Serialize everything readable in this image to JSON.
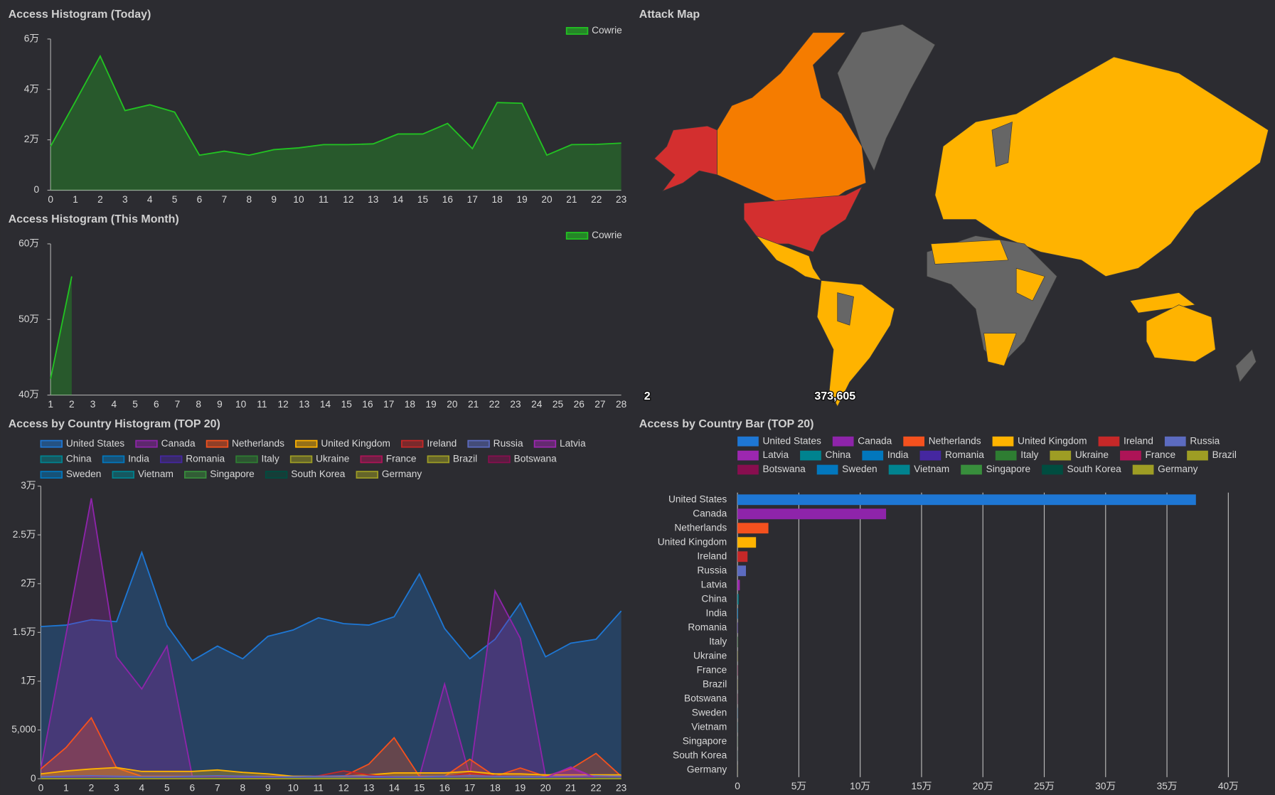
{
  "chart_data": [
    {
      "type": "line",
      "title": "Access Histogram (Today)",
      "legend": "top-right",
      "x": [
        0,
        1,
        2,
        3,
        4,
        5,
        6,
        7,
        8,
        9,
        10,
        11,
        12,
        13,
        14,
        15,
        16,
        17,
        18,
        19,
        20,
        21,
        22,
        23
      ],
      "xlim": [
        0,
        23
      ],
      "ylim": [
        0,
        60000
      ],
      "yticks": [
        0,
        {
          "value": 20000,
          "label": "2万"
        },
        {
          "value": 40000,
          "label": "4万"
        },
        {
          "value": 60000,
          "label": "6万"
        }
      ],
      "series": [
        {
          "name": "Cowrie",
          "color": "#22c322",
          "values": [
            17400,
            35200,
            53200,
            31600,
            33900,
            31000,
            13900,
            15500,
            13900,
            16100,
            16800,
            18100,
            18100,
            18400,
            22300,
            22300,
            26500,
            16500,
            34800,
            34500,
            13900,
            18100,
            18200,
            18700
          ]
        }
      ]
    },
    {
      "type": "line",
      "title": "Access Histogram (This Month)",
      "legend": "top-right",
      "x": [
        1,
        2,
        3,
        4,
        5,
        6,
        7,
        8,
        9,
        10,
        11,
        12,
        13,
        14,
        15,
        16,
        17,
        18,
        19,
        20,
        21,
        22,
        23,
        24,
        25,
        26,
        27,
        28
      ],
      "xlim": [
        1,
        28
      ],
      "ylim": [
        400000,
        600000
      ],
      "yticks": [
        {
          "value": 400000,
          "label": "40万"
        },
        {
          "value": 500000,
          "label": "50万"
        },
        {
          "value": 600000,
          "label": "60万"
        }
      ],
      "series": [
        {
          "name": "Cowrie",
          "color": "#22c322",
          "values": [
            421500,
            557000,
            null,
            null,
            null,
            null,
            null,
            null,
            null,
            null,
            null,
            null,
            null,
            null,
            null,
            null,
            null,
            null,
            null,
            null,
            null,
            null,
            null,
            null,
            null,
            null,
            null,
            null
          ]
        }
      ]
    },
    {
      "type": "line",
      "title": "Access by Country Histogram (TOP 20)",
      "legend": "top-left",
      "x": [
        0,
        1,
        2,
        3,
        4,
        5,
        6,
        7,
        8,
        9,
        10,
        11,
        12,
        13,
        14,
        15,
        16,
        17,
        18,
        19,
        20,
        21,
        22,
        23
      ],
      "xlim": [
        0,
        23
      ],
      "ylim": [
        0,
        30000
      ],
      "yticks": [
        0,
        {
          "value": 5000,
          "label": "5,000"
        },
        {
          "value": 10000,
          "label": "1万"
        },
        {
          "value": 15000,
          "label": "1.5万"
        },
        {
          "value": 20000,
          "label": "2万"
        },
        {
          "value": 25000,
          "label": "2.5万"
        },
        {
          "value": 30000,
          "label": "3万"
        }
      ],
      "series": [
        {
          "name": "United States",
          "color": "#1e77d4",
          "values": [
            15600,
            15750,
            16300,
            16100,
            23200,
            15700,
            12100,
            13600,
            12300,
            14600,
            15250,
            16500,
            15900,
            15750,
            16600,
            21000,
            15400,
            12300,
            14300,
            18000,
            12500,
            13900,
            14300,
            17200
          ]
        },
        {
          "name": "Canada",
          "color": "#8e24aa",
          "values": [
            1000,
            14800,
            28750,
            12500,
            9200,
            13600,
            250,
            200,
            200,
            200,
            200,
            200,
            200,
            200,
            200,
            200,
            9700,
            250,
            19250,
            14400,
            250,
            1100,
            0,
            0
          ]
        },
        {
          "name": "Netherlands",
          "color": "#f4511e",
          "values": [
            1000,
            3200,
            6250,
            1100,
            250,
            250,
            250,
            250,
            250,
            250,
            250,
            250,
            250,
            1500,
            4200,
            250,
            250,
            2000,
            250,
            1100,
            250,
            1000,
            2600,
            250
          ]
        },
        {
          "name": "United Kingdom",
          "color": "#ffb300",
          "values": [
            500,
            800,
            1000,
            1150,
            750,
            750,
            750,
            900,
            650,
            500,
            250,
            250,
            250,
            400,
            600,
            600,
            600,
            750,
            500,
            500,
            400,
            400,
            400,
            400
          ]
        },
        {
          "name": "Ireland",
          "color": "#c62828",
          "values": [
            100,
            150,
            200,
            150,
            100,
            100,
            150,
            200,
            150,
            100,
            100,
            300,
            800,
            400,
            200,
            150,
            200,
            600,
            300,
            200,
            150,
            200,
            200,
            150
          ]
        },
        {
          "name": "Russia",
          "color": "#5c6bc0",
          "values": [
            200,
            250,
            300,
            250,
            200,
            200,
            250,
            300,
            250,
            200,
            200,
            250,
            300,
            250,
            200,
            200,
            250,
            300,
            250,
            200,
            200,
            250,
            300,
            250
          ]
        },
        {
          "name": "Latvia",
          "color": "#9c27b0",
          "values": [
            50,
            80,
            100,
            80,
            60,
            50,
            60,
            80,
            100,
            80,
            60,
            50,
            60,
            80,
            100,
            80,
            60,
            50,
            60,
            80,
            100,
            1200,
            80,
            60
          ]
        },
        {
          "name": "China",
          "color": "#00838f",
          "values": [
            40,
            50,
            60,
            50,
            40,
            40,
            50,
            60,
            50,
            40,
            40,
            50,
            60,
            50,
            40,
            40,
            50,
            60,
            50,
            40,
            40,
            50,
            60,
            50
          ]
        },
        {
          "name": "India",
          "color": "#0277bd",
          "values": [
            30,
            40,
            30,
            20,
            30,
            40,
            30,
            20,
            30,
            40,
            30,
            20,
            30,
            40,
            30,
            20,
            30,
            40,
            30,
            20,
            30,
            40,
            30,
            20
          ]
        },
        {
          "name": "Romania",
          "color": "#4527a0",
          "values": [
            20,
            30,
            20,
            10,
            20,
            30,
            20,
            10,
            20,
            30,
            20,
            10,
            20,
            30,
            20,
            10,
            20,
            30,
            20,
            10,
            20,
            30,
            20,
            10
          ]
        },
        {
          "name": "Italy",
          "color": "#2e7d32",
          "values": [
            15,
            20,
            15,
            10,
            15,
            20,
            15,
            10,
            15,
            20,
            15,
            10,
            15,
            20,
            15,
            10,
            15,
            20,
            15,
            10,
            15,
            20,
            15,
            10
          ]
        },
        {
          "name": "Ukraine",
          "color": "#9e9d24",
          "values": [
            10,
            15,
            10,
            5,
            10,
            15,
            10,
            5,
            10,
            15,
            10,
            5,
            10,
            15,
            10,
            5,
            10,
            15,
            10,
            5,
            10,
            15,
            10,
            5
          ]
        },
        {
          "name": "France",
          "color": "#ad1457",
          "values": [
            10,
            10,
            5,
            5,
            10,
            10,
            5,
            5,
            10,
            10,
            5,
            5,
            10,
            10,
            5,
            5,
            10,
            10,
            5,
            5,
            10,
            10,
            5,
            5
          ]
        },
        {
          "name": "Brazil",
          "color": "#9e9d24",
          "values": [
            5,
            10,
            5,
            5,
            5,
            10,
            5,
            5,
            5,
            10,
            5,
            5,
            5,
            10,
            5,
            5,
            5,
            10,
            5,
            5,
            5,
            10,
            5,
            5
          ]
        },
        {
          "name": "Botswana",
          "color": "#880e4f",
          "values": [
            5,
            5,
            5,
            5,
            5,
            5,
            5,
            5,
            5,
            5,
            5,
            5,
            5,
            5,
            5,
            5,
            5,
            5,
            5,
            5,
            5,
            5,
            5,
            5
          ]
        },
        {
          "name": "Sweden",
          "color": "#0277bd",
          "values": [
            5,
            5,
            5,
            5,
            5,
            5,
            5,
            5,
            5,
            5,
            5,
            5,
            5,
            5,
            5,
            5,
            5,
            5,
            5,
            5,
            5,
            5,
            5,
            5
          ]
        },
        {
          "name": "Vietnam",
          "color": "#00838f",
          "values": [
            4,
            4,
            4,
            4,
            4,
            4,
            4,
            4,
            4,
            4,
            4,
            4,
            4,
            4,
            4,
            4,
            4,
            4,
            4,
            4,
            4,
            4,
            4,
            4
          ]
        },
        {
          "name": "Singapore",
          "color": "#388e3c",
          "values": [
            4,
            4,
            4,
            4,
            4,
            4,
            4,
            4,
            4,
            4,
            4,
            4,
            4,
            4,
            4,
            4,
            4,
            4,
            4,
            4,
            4,
            4,
            4,
            4
          ]
        },
        {
          "name": "South Korea",
          "color": "#004d40",
          "values": [
            3,
            3,
            3,
            3,
            3,
            3,
            3,
            3,
            3,
            3,
            3,
            3,
            3,
            3,
            3,
            3,
            3,
            3,
            3,
            3,
            3,
            3,
            3,
            3
          ]
        },
        {
          "name": "Germany",
          "color": "#9e9d24",
          "values": [
            3,
            3,
            3,
            3,
            3,
            3,
            3,
            3,
            3,
            3,
            3,
            3,
            3,
            3,
            3,
            3,
            3,
            3,
            3,
            3,
            3,
            3,
            3,
            3
          ]
        }
      ]
    },
    {
      "type": "hbar",
      "title": "Access by Country Bar (TOP 20)",
      "legend": "top-left",
      "categories": [
        "United States",
        "Canada",
        "Netherlands",
        "United Kingdom",
        "Ireland",
        "Russia",
        "Latvia",
        "China",
        "India",
        "Romania",
        "Italy",
        "Ukraine",
        "France",
        "Brazil",
        "Botswana",
        "Sweden",
        "Vietnam",
        "Singapore",
        "South Korea",
        "Germany"
      ],
      "values": [
        373605,
        121100,
        25200,
        15100,
        8200,
        6900,
        1900,
        900,
        500,
        300,
        250,
        200,
        180,
        150,
        130,
        120,
        110,
        100,
        90,
        80
      ],
      "colors": [
        "#1e77d4",
        "#8e24aa",
        "#f4511e",
        "#ffb300",
        "#c62828",
        "#5c6bc0",
        "#9c27b0",
        "#00838f",
        "#0277bd",
        "#4527a0",
        "#2e7d32",
        "#9e9d24",
        "#ad1457",
        "#9e9d24",
        "#880e4f",
        "#0277bd",
        "#00838f",
        "#388e3c",
        "#004d40",
        "#9e9d24"
      ],
      "xlim": [
        0,
        420000
      ],
      "grid": true,
      "xticks": [
        0,
        {
          "value": 50000,
          "label": "5万"
        },
        {
          "value": 100000,
          "label": "10万"
        },
        {
          "value": 150000,
          "label": "15万"
        },
        {
          "value": 200000,
          "label": "20万"
        },
        {
          "value": 250000,
          "label": "25万"
        },
        {
          "value": 300000,
          "label": "30万"
        },
        {
          "value": 350000,
          "label": "35万"
        },
        {
          "value": 400000,
          "label": "40万"
        }
      ]
    },
    {
      "type": "map",
      "title": "Attack Map",
      "scale": [
        2,
        {
          "value": 373605,
          "label": "373,605"
        }
      ]
    }
  ]
}
